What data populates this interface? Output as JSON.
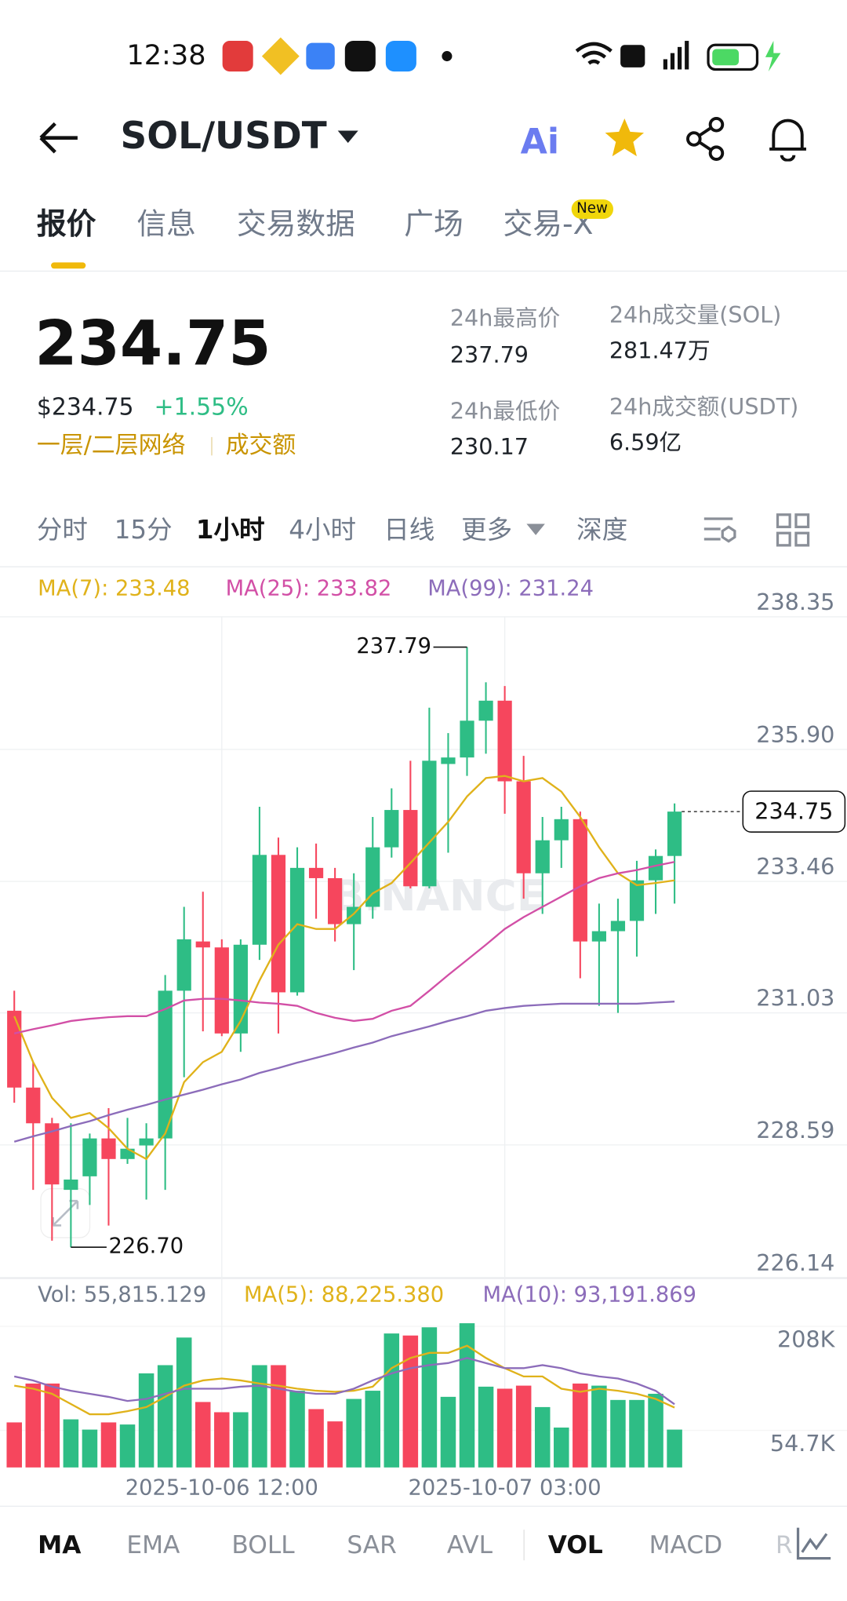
{
  "status_bar": {
    "time": "12:38"
  },
  "header": {
    "pair": "SOL/USDT",
    "ai": "Ai"
  },
  "tabs": {
    "items": [
      "报价",
      "信息",
      "交易数据",
      "广场",
      "交易-X"
    ],
    "badge": "New"
  },
  "price": {
    "last": "234.75",
    "usd": "$234.75",
    "change": "+1.55%",
    "tags": [
      "一层/二层网络",
      "成交额"
    ]
  },
  "stats": [
    {
      "label": "24h最高价",
      "value": "237.79"
    },
    {
      "label": "24h成交量(SOL)",
      "value": "281.47万"
    },
    {
      "label": "24h最低价",
      "value": "230.17"
    },
    {
      "label": "24h成交额(USDT)",
      "value": "6.59亿"
    }
  ],
  "intervals": [
    "分时",
    "15分",
    "1小时",
    "4小时",
    "日线",
    "更多",
    "深度"
  ],
  "indicator_tabs": [
    "MA",
    "EMA",
    "BOLL",
    "SAR",
    "AVL",
    "VOL",
    "MACD",
    "R"
  ],
  "chart_data": [
    {
      "type": "candlestick",
      "watermark": "BINANCE",
      "up_color": "#2ebd85",
      "down_color": "#f6465d",
      "open": [
        231.07,
        229.65,
        228.99,
        227.76,
        228.01,
        228.71,
        228.33,
        228.58,
        228.71,
        231.44,
        232.35,
        232.24,
        230.65,
        232.29,
        233.95,
        231.41,
        233.71,
        233.52,
        232.67,
        232.99,
        234.09,
        234.78,
        233.37,
        235.63,
        235.75,
        236.43,
        236.8,
        235.31,
        233.61,
        234.22,
        234.61,
        232.35,
        232.54,
        232.73,
        233.48,
        233.93
      ],
      "high": [
        231.44,
        230.12,
        229.09,
        228.99,
        228.8,
        229.27,
        229.09,
        228.99,
        231.73,
        232.99,
        233.27,
        232.39,
        232.39,
        234.84,
        234.27,
        234.09,
        234.16,
        233.71,
        233.61,
        234.65,
        235.18,
        235.69,
        236.67,
        236.2,
        237.79,
        237.14,
        237.07,
        235.78,
        234.65,
        234.84,
        234.75,
        233.05,
        233.14,
        233.84,
        234.05,
        234.9
      ],
      "low": [
        229.37,
        227.76,
        226.82,
        226.7,
        227.48,
        227.1,
        228.24,
        227.58,
        227.76,
        229.84,
        230.69,
        230.6,
        230.31,
        232.01,
        230.65,
        231.35,
        232.77,
        232.35,
        231.82,
        232.77,
        233.9,
        233.33,
        233.33,
        233.99,
        235.41,
        235.82,
        234.71,
        233.14,
        232.86,
        233.71,
        231.67,
        231.16,
        231.03,
        232.07,
        232.86,
        233.05
      ],
      "close": [
        229.65,
        228.99,
        227.86,
        227.95,
        228.71,
        228.33,
        228.52,
        228.71,
        231.44,
        232.39,
        232.24,
        230.65,
        232.29,
        233.95,
        231.41,
        233.71,
        233.52,
        232.67,
        232.99,
        234.09,
        234.78,
        233.37,
        235.69,
        235.75,
        236.43,
        236.8,
        235.31,
        233.61,
        234.22,
        234.61,
        232.35,
        232.54,
        232.73,
        233.48,
        233.93,
        234.75
      ],
      "lines": [
        {
          "name": "MA(7): 233.48",
          "color": "#e0b21a",
          "values": [
            230.97,
            230.12,
            229.46,
            229.09,
            229.18,
            228.9,
            228.52,
            228.33,
            228.8,
            229.75,
            230.12,
            230.31,
            230.88,
            231.63,
            232.29,
            232.67,
            232.58,
            232.58,
            232.86,
            233.24,
            233.43,
            233.8,
            234.18,
            234.56,
            235.03,
            235.37,
            235.41,
            235.31,
            235.37,
            235.12,
            234.65,
            234.09,
            233.61,
            233.39,
            233.43,
            233.48
          ]
        },
        {
          "name": "MA(25): 233.82",
          "color": "#d24fa6",
          "values": [
            230.65,
            230.73,
            230.8,
            230.88,
            230.92,
            230.95,
            230.97,
            230.97,
            231.1,
            231.26,
            231.29,
            231.29,
            231.26,
            231.22,
            231.2,
            231.16,
            231.03,
            230.94,
            230.88,
            230.92,
            231.07,
            231.16,
            231.44,
            231.73,
            232.01,
            232.29,
            232.58,
            232.8,
            232.99,
            233.18,
            233.37,
            233.52,
            233.61,
            233.67,
            233.75,
            233.82
          ]
        },
        {
          "name": "MA(99): 231.24",
          "color": "#8c6cba",
          "values": [
            228.65,
            228.75,
            228.84,
            228.94,
            229.03,
            229.14,
            229.24,
            229.33,
            229.43,
            229.52,
            229.61,
            229.71,
            229.8,
            229.92,
            230.01,
            230.11,
            230.2,
            230.29,
            230.39,
            230.48,
            230.6,
            230.69,
            230.78,
            230.88,
            230.97,
            231.07,
            231.12,
            231.16,
            231.18,
            231.2,
            231.2,
            231.2,
            231.2,
            231.2,
            231.22,
            231.24
          ]
        }
      ],
      "max_label": "237.79",
      "min_label": "226.70",
      "last_label": "234.75",
      "ylim": [
        226.14,
        238.35
      ],
      "yticks": [
        238.35,
        {
          "value": 235.9,
          "label": "235.90"
        },
        233.46,
        231.03,
        228.59,
        226.14
      ],
      "grid": true
    },
    {
      "type": "bar",
      "categories": [
        null,
        null,
        null,
        null,
        null,
        null,
        null,
        null,
        null,
        null,
        null,
        "2025-10-06 12:00",
        null,
        null,
        null,
        null,
        null,
        null,
        null,
        null,
        null,
        null,
        null,
        null,
        null,
        null,
        "2025-10-07 03:00",
        null,
        null,
        null,
        null,
        null,
        null,
        null,
        null,
        null
      ],
      "series": [
        {
          "name": "Vol: 55,815.129",
          "color": "#707a8a",
          "values": [
            66400,
            123700,
            123700,
            70900,
            55800,
            66400,
            63300,
            138700,
            150800,
            191500,
            96500,
            81400,
            81400,
            150800,
            150800,
            113100,
            86000,
            67900,
            101000,
            113100,
            197500,
            194500,
            206600,
            104100,
            212600,
            119100,
            116100,
            120600,
            89000,
            58800,
            123700,
            120600,
            99500,
            99500,
            108600,
            55815.129
          ]
        }
      ],
      "lines": [
        {
          "name": "MA(5): 88,225.380",
          "color": "#e0b21a",
          "values": [
            120600,
            116100,
            108600,
            93500,
            78400,
            78400,
            82900,
            89000,
            104100,
            120600,
            128200,
            131200,
            128200,
            123700,
            120600,
            116100,
            113100,
            111600,
            113100,
            119100,
            146300,
            161400,
            168900,
            168900,
            179500,
            161400,
            146300,
            134200,
            134200,
            116100,
            111600,
            116100,
            113100,
            108600,
            101000,
            88225.38
          ]
        },
        {
          "name": "MA(10): 93,191.869",
          "color": "#8c6cba",
          "values": [
            134200,
            128200,
            119100,
            113100,
            108600,
            104100,
            98000,
            101000,
            108600,
            116100,
            116100,
            116100,
            119100,
            120600,
            116100,
            111600,
            108600,
            108600,
            116100,
            128200,
            138700,
            146300,
            150800,
            153800,
            161400,
            153800,
            146300,
            146300,
            150800,
            146300,
            138700,
            134200,
            131200,
            123700,
            113100,
            93191.869
          ]
        }
      ],
      "ylim": [
        0,
        274000
      ],
      "yticks": [
        {
          "value": 208000,
          "label": "208K"
        },
        {
          "value": 54700,
          "label": "54.7K"
        }
      ]
    }
  ]
}
